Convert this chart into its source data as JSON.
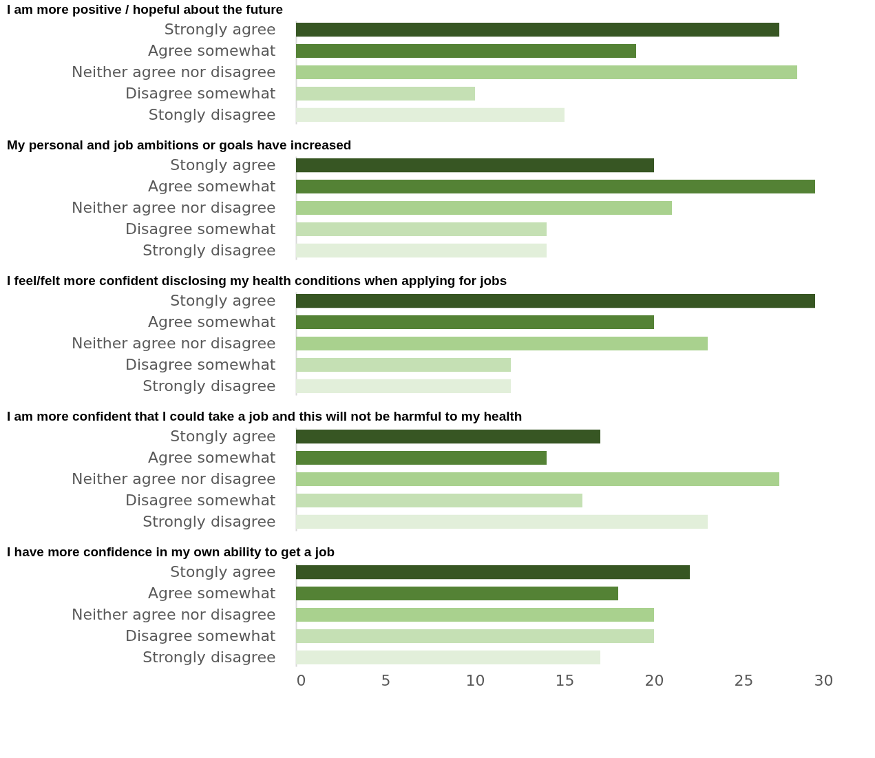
{
  "chart_data": [
    {
      "type": "bar",
      "orientation": "horizontal",
      "title": "I am more positive / hopeful about the future",
      "categories": [
        "Strongly agree",
        "Agree somewhat",
        "Neither agree nor disagree",
        "Disagree somewhat",
        "Stongly disagree"
      ],
      "values": [
        27,
        19,
        28,
        10,
        15
      ],
      "colors": [
        "#375623",
        "#548235",
        "#a9d18e",
        "#c5e0b4",
        "#e2efda"
      ],
      "xlim": [
        0,
        30
      ],
      "tick_labels": "y",
      "grid": false
    },
    {
      "type": "bar",
      "orientation": "horizontal",
      "title": "My personal and job ambitions or goals have increased",
      "categories": [
        "Stongly agree",
        "Agree somewhat",
        "Neither agree nor disagree",
        "Disagree somewhat",
        "Strongly disagree"
      ],
      "values": [
        20,
        29,
        21,
        14,
        14
      ],
      "colors": [
        "#375623",
        "#548235",
        "#a9d18e",
        "#c5e0b4",
        "#e2efda"
      ],
      "xlim": [
        0,
        30
      ],
      "tick_labels": "y",
      "grid": false
    },
    {
      "type": "bar",
      "orientation": "horizontal",
      "title": "I feel/felt more confident disclosing my health conditions when applying for jobs",
      "categories": [
        "Stongly agree",
        "Agree somewhat",
        "Neither agree nor disagree",
        "Disagree somewhat",
        "Strongly disagree"
      ],
      "values": [
        29,
        20,
        23,
        12,
        12
      ],
      "colors": [
        "#375623",
        "#548235",
        "#a9d18e",
        "#c5e0b4",
        "#e2efda"
      ],
      "xlim": [
        0,
        30
      ],
      "tick_labels": "y",
      "grid": false
    },
    {
      "type": "bar",
      "orientation": "horizontal",
      "title": "I am more confident that I could take a job and this will not be harmful to my health",
      "categories": [
        "Stongly agree",
        "Agree somewhat",
        "Neither agree nor disagree",
        "Disagree somewhat",
        "Strongly disagree"
      ],
      "values": [
        17,
        14,
        27,
        16,
        23
      ],
      "colors": [
        "#375623",
        "#548235",
        "#a9d18e",
        "#c5e0b4",
        "#e2efda"
      ],
      "xlim": [
        0,
        30
      ],
      "tick_labels": "y",
      "grid": false
    },
    {
      "type": "bar",
      "orientation": "horizontal",
      "title": "I have more confidence in my own ability to get a job",
      "categories": [
        "Stongly agree",
        "Agree somewhat",
        "Neither agree nor disagree",
        "Disagree somewhat",
        "Strongly disagree"
      ],
      "values": [
        22,
        18,
        20,
        20,
        17
      ],
      "colors": [
        "#375623",
        "#548235",
        "#a9d18e",
        "#c5e0b4",
        "#e2efda"
      ],
      "xlim": [
        0,
        30
      ],
      "xticks": [
        0,
        5,
        10,
        15,
        20,
        25,
        30
      ],
      "grid": false
    }
  ]
}
